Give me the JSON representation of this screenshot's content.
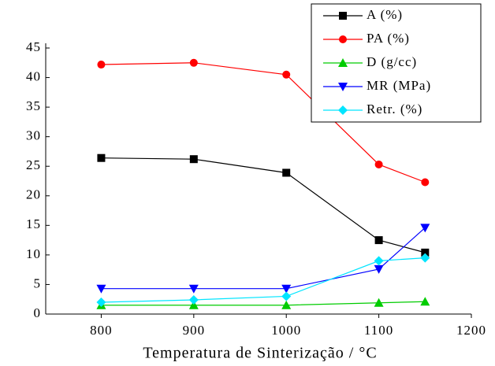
{
  "chart_data": {
    "type": "line",
    "x_label": "Temperatura de Sinterização / °C",
    "x": [
      800,
      900,
      1000,
      1100,
      1150
    ],
    "xlim": [
      740,
      1200
    ],
    "xticks": [
      800,
      900,
      1000,
      1100,
      1200
    ],
    "ylim": [
      0,
      45
    ],
    "yticks": [
      0,
      5,
      10,
      15,
      20,
      25,
      30,
      35,
      40,
      45
    ],
    "legend": "top-right",
    "series": [
      {
        "name": "A (%)",
        "color": "#000000",
        "marker": "square",
        "values": [
          26.4,
          26.2,
          23.9,
          12.5,
          10.4
        ]
      },
      {
        "name": "PA (%)",
        "color": "#ff0000",
        "marker": "circle",
        "values": [
          42.2,
          42.5,
          40.5,
          25.3,
          22.3
        ]
      },
      {
        "name": "D (g/cc)",
        "color": "#00cc00",
        "marker": "triangle-up",
        "values": [
          1.5,
          1.5,
          1.5,
          1.9,
          2.1
        ]
      },
      {
        "name": "MR (MPa)",
        "color": "#0000ff",
        "marker": "triangle-down",
        "values": [
          4.3,
          4.3,
          4.3,
          7.6,
          14.6
        ]
      },
      {
        "name": "Retr. (%)",
        "color": "#00e5ff",
        "marker": "diamond",
        "values": [
          2.0,
          2.4,
          3.0,
          9.0,
          9.5
        ]
      }
    ]
  }
}
